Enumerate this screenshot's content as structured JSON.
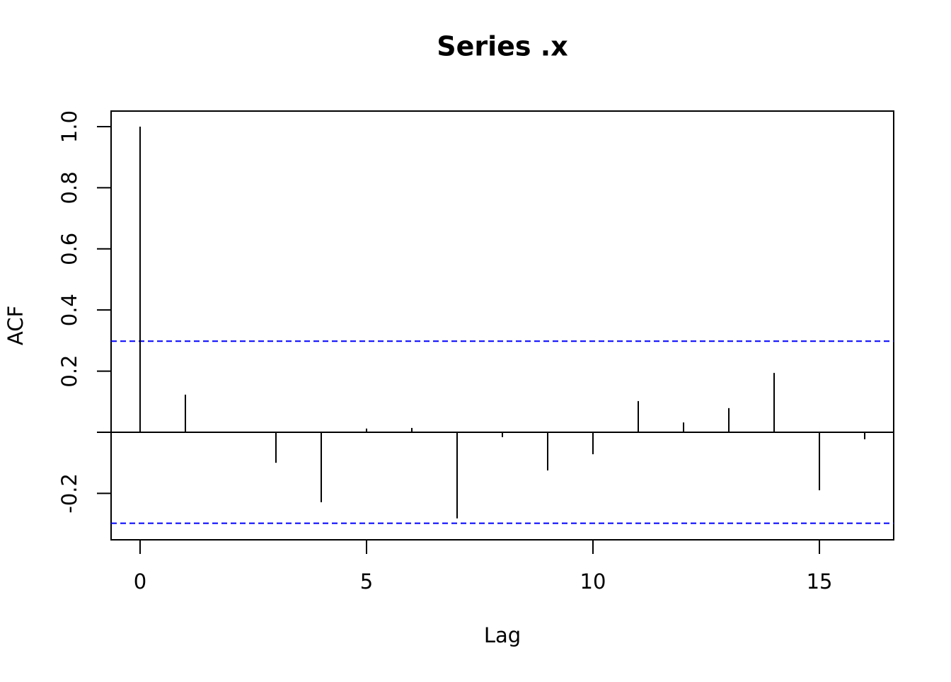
{
  "chart_data": {
    "type": "acf",
    "title": "Series  .x",
    "xlabel": "Lag",
    "ylabel": "ACF",
    "x": [
      0,
      1,
      2,
      3,
      4,
      5,
      6,
      7,
      8,
      9,
      10,
      11,
      12,
      13,
      14,
      15,
      16
    ],
    "values": [
      1.0,
      0.123,
      0.002,
      -0.1,
      -0.229,
      0.012,
      0.014,
      -0.282,
      -0.016,
      -0.125,
      -0.072,
      0.102,
      0.032,
      0.079,
      0.194,
      -0.19,
      -0.023
    ],
    "color": "#000000",
    "ci": [
      -0.298,
      0.298
    ],
    "ci_color": "#0000ff",
    "xlim": [
      -0.64,
      16.64
    ],
    "xticks": [
      0,
      5,
      10,
      15
    ],
    "ylim": [
      -0.352,
      1.051
    ],
    "yticks": [
      {
        "value": -0.2,
        "label": "-0.2"
      },
      {
        "value": 0,
        "label": null
      },
      {
        "value": 0.2,
        "label": "0.2"
      },
      {
        "value": 0.4,
        "label": "0.4"
      },
      {
        "value": 0.6,
        "label": "0.6"
      },
      {
        "value": 0.8,
        "label": "0.8"
      },
      {
        "value": 1.0,
        "label": "1.0"
      }
    ]
  }
}
